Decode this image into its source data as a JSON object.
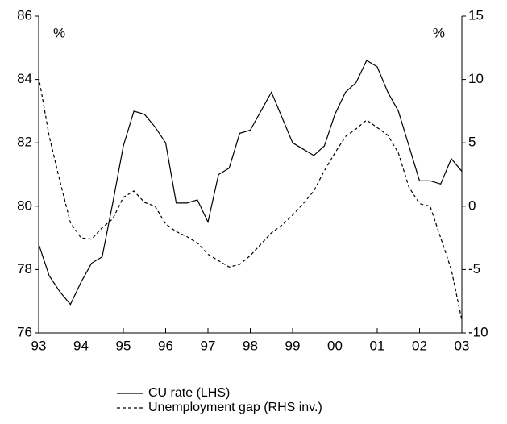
{
  "chart_data": {
    "type": "line",
    "y_unit": "%",
    "y2_unit": "%",
    "x": [
      1993,
      1993.25,
      1993.5,
      1993.75,
      1994,
      1994.25,
      1994.5,
      1994.75,
      1995,
      1995.25,
      1995.5,
      1995.75,
      1996,
      1996.25,
      1996.5,
      1996.75,
      1997,
      1997.25,
      1997.5,
      1997.75,
      1998,
      1998.25,
      1998.5,
      1998.75,
      1999,
      1999.25,
      1999.5,
      1999.75,
      2000,
      2000.25,
      2000.5,
      2000.75,
      2001,
      2001.25,
      2001.5,
      2001.75,
      2002,
      2002.25,
      2002.5,
      2002.75,
      2003
    ],
    "series": [
      {
        "name": "CU rate (LHS)",
        "color": "#000000",
        "dash": "solid",
        "values": [
          78.8,
          77.8,
          77.3,
          76.9,
          77.6,
          78.2,
          78.4,
          80.1,
          81.9,
          83.0,
          82.9,
          82.5,
          82.0,
          80.1,
          80.1,
          80.2,
          79.5,
          81.0,
          81.2,
          82.3,
          82.4,
          83.0,
          83.6,
          82.8,
          82.0,
          81.8,
          81.6,
          81.9,
          82.9,
          83.6,
          83.9,
          84.6,
          84.4,
          83.6,
          83.0,
          81.9,
          80.8,
          80.8,
          80.7,
          81.5,
          81.1
        ]
      },
      {
        "name": "Unemployment gap (RHS inv.)",
        "color": "#000000",
        "dash": "dashed",
        "axis": "y2",
        "values": [
          10.2,
          5.5,
          2.0,
          -1.3,
          -2.5,
          -2.6,
          -1.7,
          -1.0,
          0.7,
          1.2,
          0.3,
          0.0,
          -1.4,
          -2.0,
          -2.4,
          -2.9,
          -3.8,
          -4.3,
          -4.8,
          -4.6,
          -3.9,
          -3.0,
          -2.1,
          -1.5,
          -0.7,
          0.2,
          1.2,
          2.8,
          4.2,
          5.5,
          6.1,
          6.8,
          6.2,
          5.6,
          4.2,
          1.5,
          0.2,
          0.0,
          -2.5,
          -5.0,
          -9.0
        ]
      }
    ],
    "xlim": [
      1993,
      2003
    ],
    "xticks": [
      {
        "value": 1993,
        "label": "93"
      },
      {
        "value": 1994,
        "label": "94"
      },
      {
        "value": 1995,
        "label": "95"
      },
      {
        "value": 1996,
        "label": "96"
      },
      {
        "value": 1997,
        "label": "97"
      },
      {
        "value": 1998,
        "label": "98"
      },
      {
        "value": 1999,
        "label": "99"
      },
      {
        "value": 2000,
        "label": "00"
      },
      {
        "value": 2001,
        "label": "01"
      },
      {
        "value": 2002,
        "label": "02"
      },
      {
        "value": 2003,
        "label": "03"
      }
    ],
    "ylim": [
      76,
      86
    ],
    "yticks": [
      76,
      78,
      80,
      82,
      84,
      86
    ],
    "y2lim": [
      -10,
      15
    ],
    "y2ticks": [
      -10,
      -5,
      0,
      5,
      10,
      15
    ],
    "grid": false
  }
}
